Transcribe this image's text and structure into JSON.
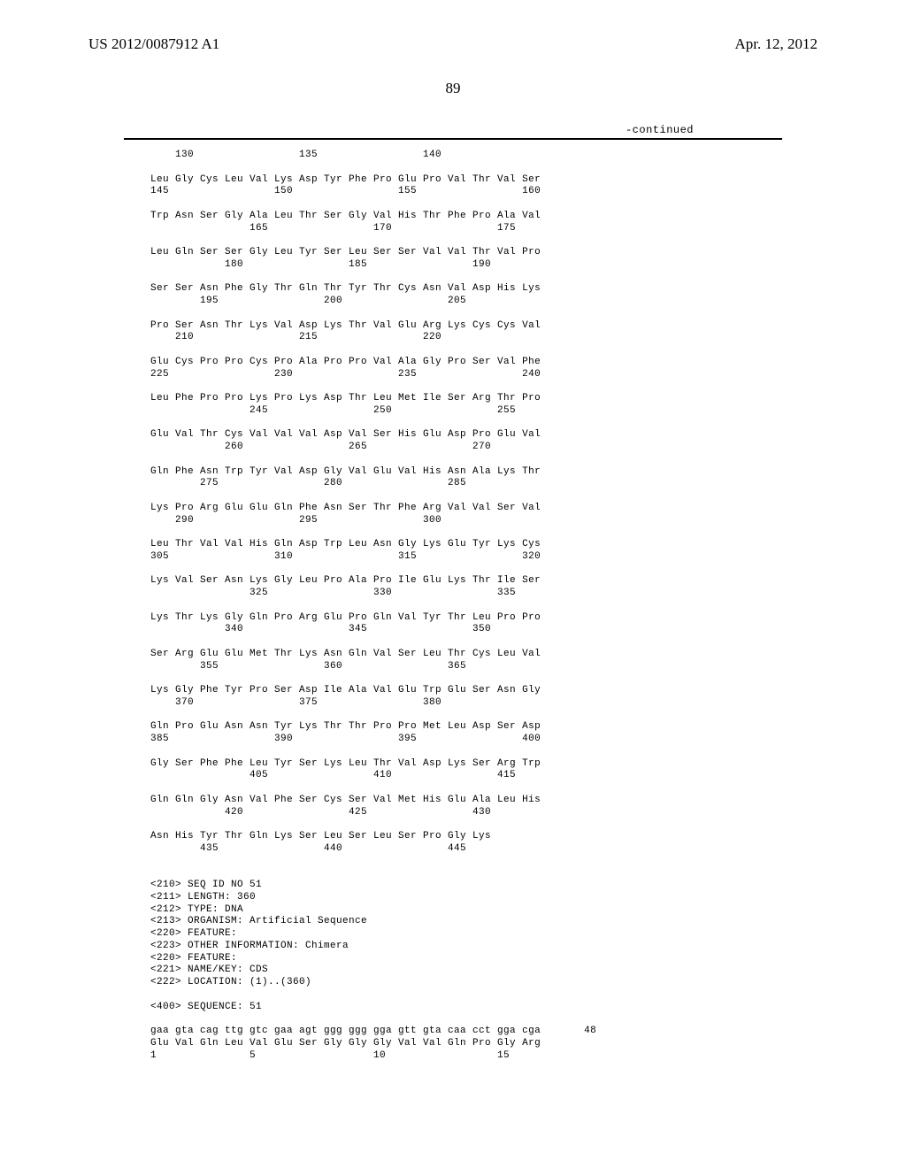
{
  "header": {
    "doc_id": "US 2012/0087912 A1",
    "date": "Apr. 12, 2012"
  },
  "page_number": "89",
  "continued_label": "-continued",
  "sequence_rows": [
    "    130                 135                 140",
    "",
    "Leu Gly Cys Leu Val Lys Asp Tyr Phe Pro Glu Pro Val Thr Val Ser",
    "145                 150                 155                 160",
    "",
    "Trp Asn Ser Gly Ala Leu Thr Ser Gly Val His Thr Phe Pro Ala Val",
    "                165                 170                 175",
    "",
    "Leu Gln Ser Ser Gly Leu Tyr Ser Leu Ser Ser Val Val Thr Val Pro",
    "            180                 185                 190",
    "",
    "Ser Ser Asn Phe Gly Thr Gln Thr Tyr Thr Cys Asn Val Asp His Lys",
    "        195                 200                 205",
    "",
    "Pro Ser Asn Thr Lys Val Asp Lys Thr Val Glu Arg Lys Cys Cys Val",
    "    210                 215                 220",
    "",
    "Glu Cys Pro Pro Cys Pro Ala Pro Pro Val Ala Gly Pro Ser Val Phe",
    "225                 230                 235                 240",
    "",
    "Leu Phe Pro Pro Lys Pro Lys Asp Thr Leu Met Ile Ser Arg Thr Pro",
    "                245                 250                 255",
    "",
    "Glu Val Thr Cys Val Val Val Asp Val Ser His Glu Asp Pro Glu Val",
    "            260                 265                 270",
    "",
    "Gln Phe Asn Trp Tyr Val Asp Gly Val Glu Val His Asn Ala Lys Thr",
    "        275                 280                 285",
    "",
    "Lys Pro Arg Glu Glu Gln Phe Asn Ser Thr Phe Arg Val Val Ser Val",
    "    290                 295                 300",
    "",
    "Leu Thr Val Val His Gln Asp Trp Leu Asn Gly Lys Glu Tyr Lys Cys",
    "305                 310                 315                 320",
    "",
    "Lys Val Ser Asn Lys Gly Leu Pro Ala Pro Ile Glu Lys Thr Ile Ser",
    "                325                 330                 335",
    "",
    "Lys Thr Lys Gly Gln Pro Arg Glu Pro Gln Val Tyr Thr Leu Pro Pro",
    "            340                 345                 350",
    "",
    "Ser Arg Glu Glu Met Thr Lys Asn Gln Val Ser Leu Thr Cys Leu Val",
    "        355                 360                 365",
    "",
    "Lys Gly Phe Tyr Pro Ser Asp Ile Ala Val Glu Trp Glu Ser Asn Gly",
    "    370                 375                 380",
    "",
    "Gln Pro Glu Asn Asn Tyr Lys Thr Thr Pro Pro Met Leu Asp Ser Asp",
    "385                 390                 395                 400",
    "",
    "Gly Ser Phe Phe Leu Tyr Ser Lys Leu Thr Val Asp Lys Ser Arg Trp",
    "                405                 410                 415",
    "",
    "Gln Gln Gly Asn Val Phe Ser Cys Ser Val Met His Glu Ala Leu His",
    "            420                 425                 430",
    "",
    "Asn His Tyr Thr Gln Lys Ser Leu Ser Leu Ser Pro Gly Lys",
    "        435                 440                 445"
  ],
  "annotation_block": [
    "<210> SEQ ID NO 51",
    "<211> LENGTH: 360",
    "<212> TYPE: DNA",
    "<213> ORGANISM: Artificial Sequence",
    "<220> FEATURE:",
    "<223> OTHER INFORMATION: Chimera",
    "<220> FEATURE:",
    "<221> NAME/KEY: CDS",
    "<222> LOCATION: (1)..(360)",
    "",
    "<400> SEQUENCE: 51"
  ],
  "dna_block": [
    "gaa gta cag ttg gtc gaa agt ggg ggg gga gtt gta caa cct gga cga       48",
    "Glu Val Gln Leu Val Glu Ser Gly Gly Gly Val Val Gln Pro Gly Arg",
    "1               5                   10                  15"
  ]
}
